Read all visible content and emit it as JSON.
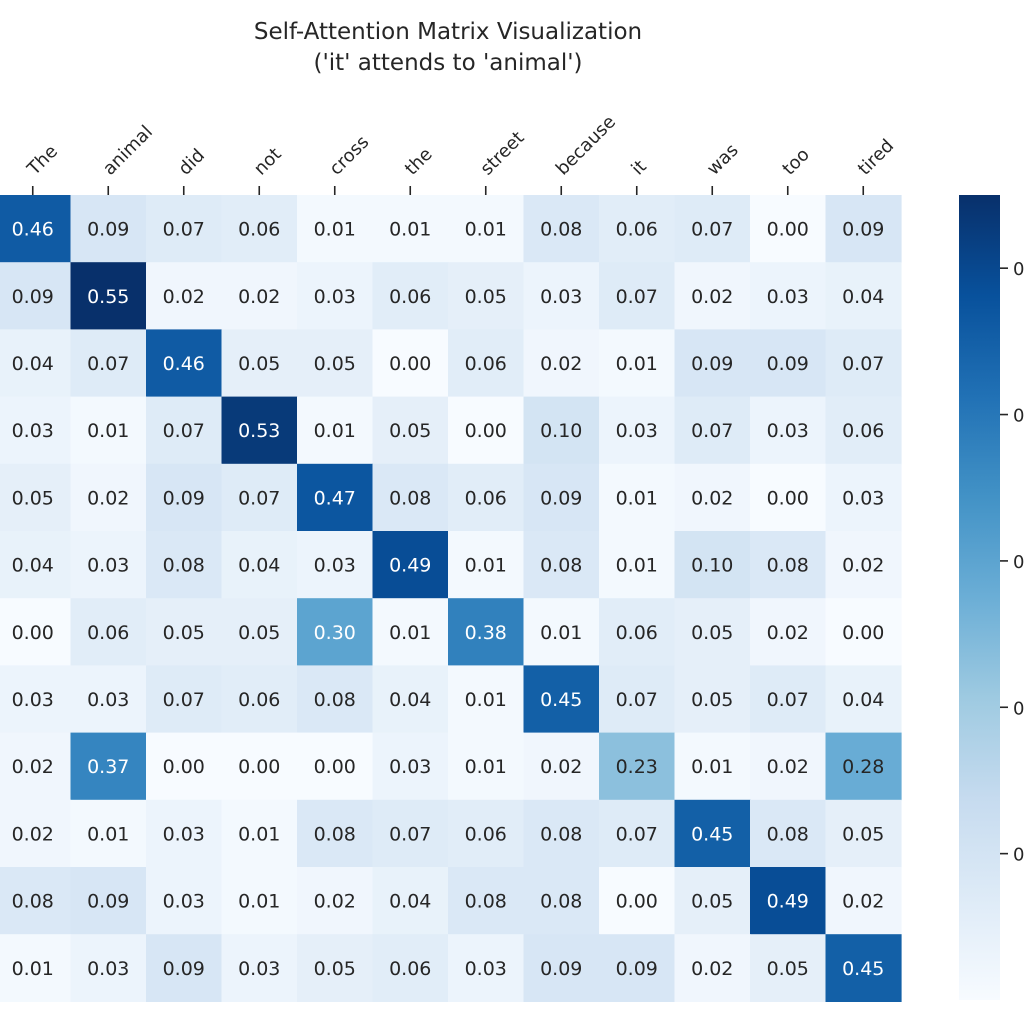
{
  "chart_data": {
    "type": "heatmap",
    "title": "Self-Attention Matrix Visualization",
    "subtitle": "('it' attends to 'animal')",
    "x_labels": [
      "The",
      "animal",
      "did",
      "not",
      "cross",
      "the",
      "street",
      "because",
      "it",
      "was",
      "too",
      "tired"
    ],
    "values": [
      [
        0.46,
        0.09,
        0.07,
        0.06,
        0.01,
        0.01,
        0.01,
        0.08,
        0.06,
        0.07,
        0.0,
        0.09
      ],
      [
        0.09,
        0.55,
        0.02,
        0.02,
        0.03,
        0.06,
        0.05,
        0.03,
        0.07,
        0.02,
        0.03,
        0.04
      ],
      [
        0.04,
        0.07,
        0.46,
        0.05,
        0.05,
        0.0,
        0.06,
        0.02,
        0.01,
        0.09,
        0.09,
        0.07
      ],
      [
        0.03,
        0.01,
        0.07,
        0.53,
        0.01,
        0.05,
        0.0,
        0.1,
        0.03,
        0.07,
        0.03,
        0.06
      ],
      [
        0.05,
        0.02,
        0.09,
        0.07,
        0.47,
        0.08,
        0.06,
        0.09,
        0.01,
        0.02,
        0.0,
        0.03
      ],
      [
        0.04,
        0.03,
        0.08,
        0.04,
        0.03,
        0.49,
        0.01,
        0.08,
        0.01,
        0.1,
        0.08,
        0.02
      ],
      [
        0.0,
        0.06,
        0.05,
        0.05,
        0.3,
        0.01,
        0.38,
        0.01,
        0.06,
        0.05,
        0.02,
        0.0
      ],
      [
        0.03,
        0.03,
        0.07,
        0.06,
        0.08,
        0.04,
        0.01,
        0.45,
        0.07,
        0.05,
        0.07,
        0.04
      ],
      [
        0.02,
        0.37,
        0.0,
        0.0,
        0.0,
        0.03,
        0.01,
        0.02,
        0.23,
        0.01,
        0.02,
        0.28
      ],
      [
        0.02,
        0.01,
        0.03,
        0.01,
        0.08,
        0.07,
        0.06,
        0.08,
        0.07,
        0.45,
        0.08,
        0.05
      ],
      [
        0.08,
        0.09,
        0.03,
        0.01,
        0.02,
        0.04,
        0.08,
        0.08,
        0.0,
        0.05,
        0.49,
        0.02
      ],
      [
        0.01,
        0.03,
        0.09,
        0.03,
        0.05,
        0.06,
        0.03,
        0.09,
        0.09,
        0.02,
        0.05,
        0.45
      ]
    ],
    "value_format": "0.00",
    "colormap": "Blues",
    "vmin": 0.0,
    "vmax": 0.55,
    "colorbar_visible_tick_text": [
      "0",
      "0",
      "0",
      "0",
      "0"
    ],
    "colors": {
      "low": "#f7fbff",
      "high": "#08306b",
      "text_dark": "#262626",
      "text_light": "#ffffff"
    }
  }
}
